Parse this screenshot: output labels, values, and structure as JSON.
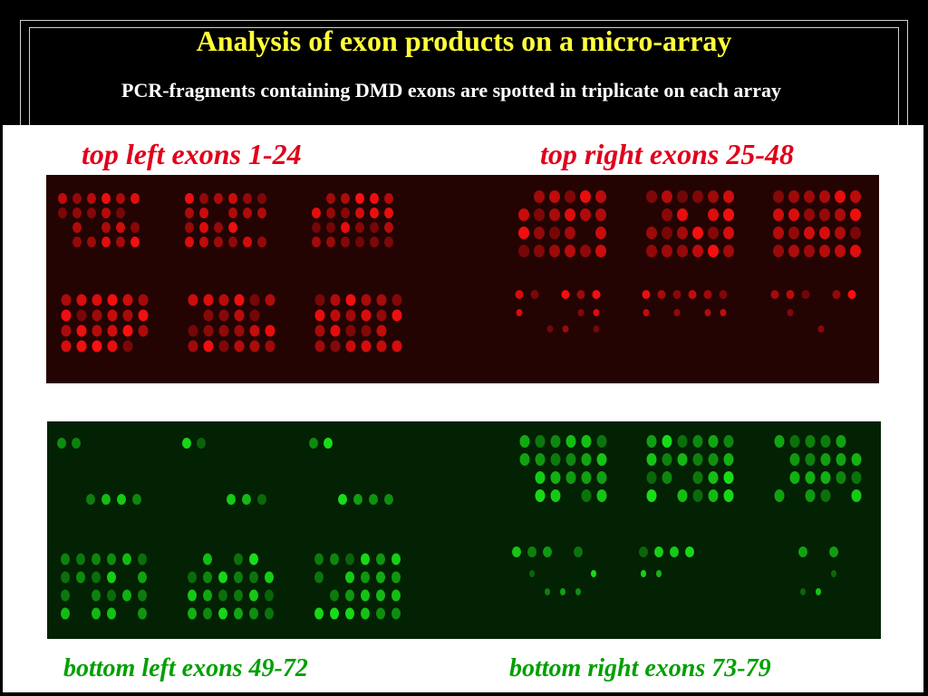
{
  "slide": {
    "title": "Analysis of exon products on a micro-array",
    "subtitle": "PCR-fragments containing DMD exons are spotted in triplicate on each array"
  },
  "labels": {
    "top_left": "top left exons 1-24",
    "top_right": "top right exons 25-48",
    "bottom_left": "bottom left exons 49-72",
    "bottom_right": "bottom right exons 73-79"
  },
  "colors": {
    "title": "#ffff3a",
    "red_label": "#e0001b",
    "green_label": "#00a000",
    "red_spot": "#ff1010",
    "green_spot": "#18e018"
  }
}
